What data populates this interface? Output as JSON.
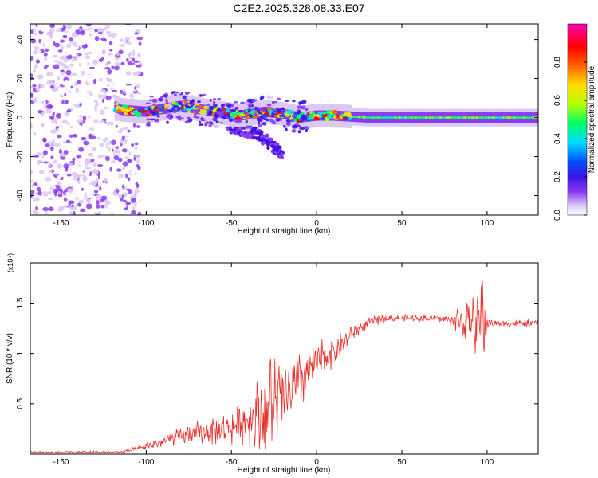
{
  "title": "C2E2.2025.328.08.33.E07",
  "chart_data": [
    {
      "type": "heatmap",
      "name": "spectrogram",
      "xlabel": "Height of straight line (km)",
      "ylabel": "Frequency (Hz)",
      "xlim": [
        -168,
        130
      ],
      "ylim": [
        -50,
        48
      ],
      "xticks": [
        -150,
        -100,
        -50,
        0,
        50,
        100
      ],
      "yticks": [
        -40,
        -20,
        0,
        20,
        40
      ],
      "colorbar": {
        "label": "Normalized spectral amplitude",
        "range": [
          0.0,
          1.0
        ],
        "ticks": [
          0.0,
          0.2,
          0.4,
          0.6,
          0.8
        ],
        "colormap": [
          "#ffffff",
          "#dcc8f5",
          "#8a3cf0",
          "#3c14e6",
          "#0050ff",
          "#00dcff",
          "#00ff64",
          "#b4ff00",
          "#ffdc00",
          "#ff6400",
          "#ff0000",
          "#ff00b4"
        ]
      },
      "features": [
        {
          "label": "noise region",
          "x_range": [
            -168,
            -103
          ],
          "freq_range": [
            -50,
            48
          ],
          "amplitude": 0.15
        },
        {
          "label": "spectral trace",
          "points": [
            [
              -130,
              12
            ],
            [
              -115,
              4
            ],
            [
              -100,
              3
            ],
            [
              -80,
              6
            ],
            [
              -60,
              3
            ],
            [
              -45,
              1
            ],
            [
              -30,
              3
            ],
            [
              -20,
              2
            ],
            [
              -10,
              0
            ],
            [
              0,
              1
            ],
            [
              10,
              1
            ],
            [
              30,
              0
            ],
            [
              60,
              0
            ],
            [
              100,
              0
            ],
            [
              130,
              0
            ]
          ],
          "amplitude": 0.8
        },
        {
          "label": "lower branch",
          "points": [
            [
              -50,
              -5
            ],
            [
              -35,
              -8
            ],
            [
              -25,
              -15
            ],
            [
              -20,
              -20
            ]
          ],
          "amplitude": 0.3
        }
      ]
    },
    {
      "type": "line",
      "name": "snr",
      "xlabel": "Height of straight line (km)",
      "ylabel": "SNR (10 * v/v)",
      "yscale_label": "(x10⁴)",
      "xlim": [
        -168,
        130
      ],
      "ylim": [
        0,
        1.9
      ],
      "xticks": [
        -150,
        -100,
        -50,
        0,
        50,
        100
      ],
      "yticks": [
        0.5,
        1.0,
        1.5
      ],
      "series": [
        {
          "name": "SNR",
          "color": "#e8302a",
          "x": [
            -168,
            -150,
            -130,
            -115,
            -105,
            -95,
            -85,
            -75,
            -65,
            -55,
            -45,
            -40,
            -35,
            -30,
            -25,
            -20,
            -15,
            -10,
            -5,
            0,
            5,
            10,
            15,
            20,
            25,
            30,
            35,
            40,
            50,
            60,
            70,
            80,
            85,
            90,
            95,
            98,
            100,
            105,
            110,
            120,
            130
          ],
          "y": [
            0.02,
            0.02,
            0.02,
            0.02,
            0.05,
            0.1,
            0.15,
            0.2,
            0.22,
            0.25,
            0.3,
            0.35,
            0.4,
            0.45,
            0.5,
            0.55,
            0.62,
            0.72,
            0.82,
            0.9,
            0.97,
            1.03,
            1.1,
            1.18,
            1.25,
            1.3,
            1.33,
            1.35,
            1.35,
            1.35,
            1.35,
            1.33,
            1.32,
            1.3,
            1.35,
            1.3,
            1.3,
            1.3,
            1.3,
            1.3,
            1.3
          ],
          "noise_amplitude": [
            0.01,
            0.01,
            0.01,
            0.01,
            0.02,
            0.04,
            0.06,
            0.08,
            0.1,
            0.12,
            0.15,
            0.2,
            0.3,
            0.4,
            0.4,
            0.35,
            0.3,
            0.25,
            0.2,
            0.2,
            0.15,
            0.12,
            0.1,
            0.08,
            0.06,
            0.04,
            0.04,
            0.03,
            0.03,
            0.03,
            0.03,
            0.05,
            0.2,
            0.15,
            0.3,
            0.5,
            0.05,
            0.03,
            0.03,
            0.03,
            0.03
          ]
        }
      ]
    }
  ]
}
